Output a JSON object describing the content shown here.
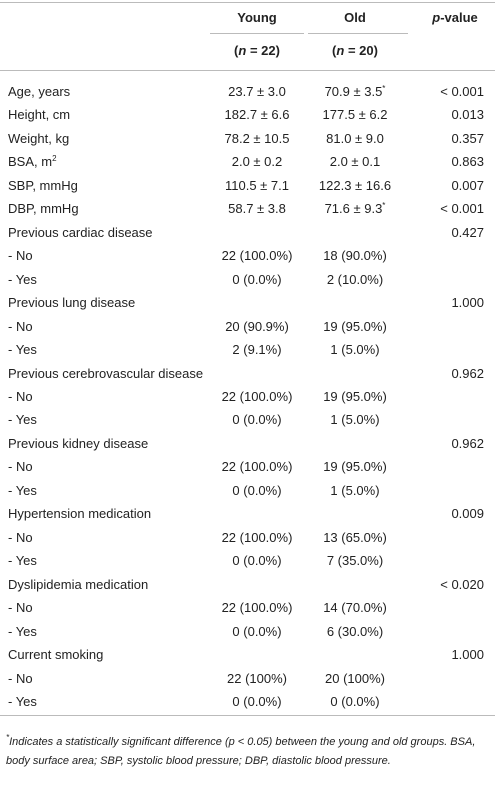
{
  "table": {
    "header": {
      "young": "Young",
      "old": "Old",
      "p_value": {
        "italic": "p",
        "text": "-value"
      },
      "young_n": {
        "pre": "(",
        "italic": "n",
        "post": " = 22)"
      },
      "old_n": {
        "pre": "(",
        "italic": "n",
        "post": " = 20)"
      }
    },
    "rows": [
      [
        "Age, years",
        "23.7 ± 3.0",
        {
          "text": "70.9 ± 3.5",
          "sup": "*"
        },
        "< 0.001"
      ],
      [
        "Height, cm",
        "182.7 ± 6.6",
        "177.5 ± 6.2",
        "0.013"
      ],
      [
        "Weight, kg",
        "78.2 ± 10.5",
        "81.0 ± 9.0",
        "0.357"
      ],
      [
        {
          "text": "BSA, m",
          "sup": "2"
        },
        "2.0 ± 0.2",
        "2.0 ± 0.1",
        "0.863"
      ],
      [
        "SBP, mmHg",
        "110.5 ± 7.1",
        "122.3 ± 16.6",
        "0.007"
      ],
      [
        "DBP, mmHg",
        "58.7 ± 3.8",
        {
          "text": "71.6 ± 9.3",
          "sup": "*"
        },
        "< 0.001"
      ],
      [
        "Previous cardiac disease",
        null,
        null,
        "0.427"
      ],
      [
        "- No",
        "22 (100.0%)",
        "18 (90.0%)",
        null
      ],
      [
        "- Yes",
        "0 (0.0%)",
        "2 (10.0%)",
        null
      ],
      [
        "Previous lung disease",
        null,
        null,
        "1.000"
      ],
      [
        "- No",
        "20 (90.9%)",
        "19 (95.0%)",
        null
      ],
      [
        "- Yes",
        "2 (9.1%)",
        "1 (5.0%)",
        null
      ],
      [
        "Previous cerebrovascular disease",
        null,
        null,
        "0.962"
      ],
      [
        "- No",
        "22 (100.0%)",
        "19 (95.0%)",
        null
      ],
      [
        "- Yes",
        "0 (0.0%)",
        "1 (5.0%)",
        null
      ],
      [
        "Previous kidney disease",
        null,
        null,
        "0.962"
      ],
      [
        "- No",
        "22 (100.0%)",
        "19 (95.0%)",
        null
      ],
      [
        "- Yes",
        "0 (0.0%)",
        "1 (5.0%)",
        null
      ],
      [
        "Hypertension medication",
        null,
        null,
        "0.009"
      ],
      [
        "- No",
        "22 (100.0%)",
        "13 (65.0%)",
        null
      ],
      [
        "- Yes",
        "0 (0.0%)",
        "7 (35.0%)",
        null
      ],
      [
        "Dyslipidemia medication",
        null,
        null,
        "< 0.020"
      ],
      [
        "- No",
        "22 (100.0%)",
        "14 (70.0%)",
        null
      ],
      [
        "- Yes",
        "0 (0.0%)",
        "6 (30.0%)",
        null
      ],
      [
        "Current smoking",
        null,
        null,
        "1.000"
      ],
      [
        "- No",
        "22 (100%)",
        "20 (100%)",
        null
      ],
      [
        "- Yes",
        "0 (0.0%)",
        "0 (0.0%)",
        null
      ]
    ],
    "footnote": {
      "sup": "*",
      "text": "Indicates a statistically significant difference (p < 0.05) between the young and old groups. BSA, body surface area; SBP, systolic blood pressure; DBP, diastolic blood pressure."
    }
  }
}
